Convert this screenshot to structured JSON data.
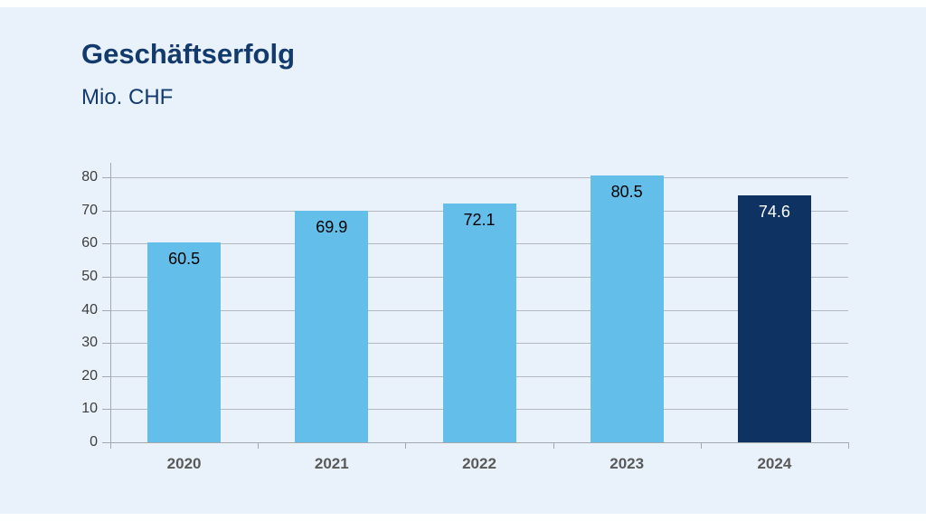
{
  "slide": {
    "title": "Geschäftserfolg",
    "subtitle": "Mio. CHF"
  },
  "colors": {
    "background": "#e9f2fb",
    "strip": "#fdfefe",
    "title_text": "#123a6d",
    "bar_light": "#63bee9",
    "bar_dark": "#0e3262",
    "gridline": "#b3b9be",
    "axis": "#a3a9af",
    "tick_label": "#3d3d3d",
    "x_label": "#595959",
    "value_label_on_light": "#000000",
    "value_label_on_dark": "#ffffff"
  },
  "chart_data": {
    "type": "bar",
    "title": "Geschäftserfolg",
    "subtitle": "Mio. CHF",
    "categories": [
      "2020",
      "2021",
      "2022",
      "2023",
      "2024"
    ],
    "values": [
      60.5,
      69.9,
      72.1,
      80.5,
      74.6
    ],
    "value_labels": [
      "60.5",
      "69.9",
      "72.1",
      "80.5",
      "74.6"
    ],
    "highlight_category": "2024",
    "ylim": [
      0,
      80
    ],
    "ytick_step": 10,
    "yticks": [
      0,
      10,
      20,
      30,
      40,
      50,
      60,
      70,
      80
    ],
    "grid": true,
    "legend": false,
    "value_label_position": "inside-top"
  }
}
